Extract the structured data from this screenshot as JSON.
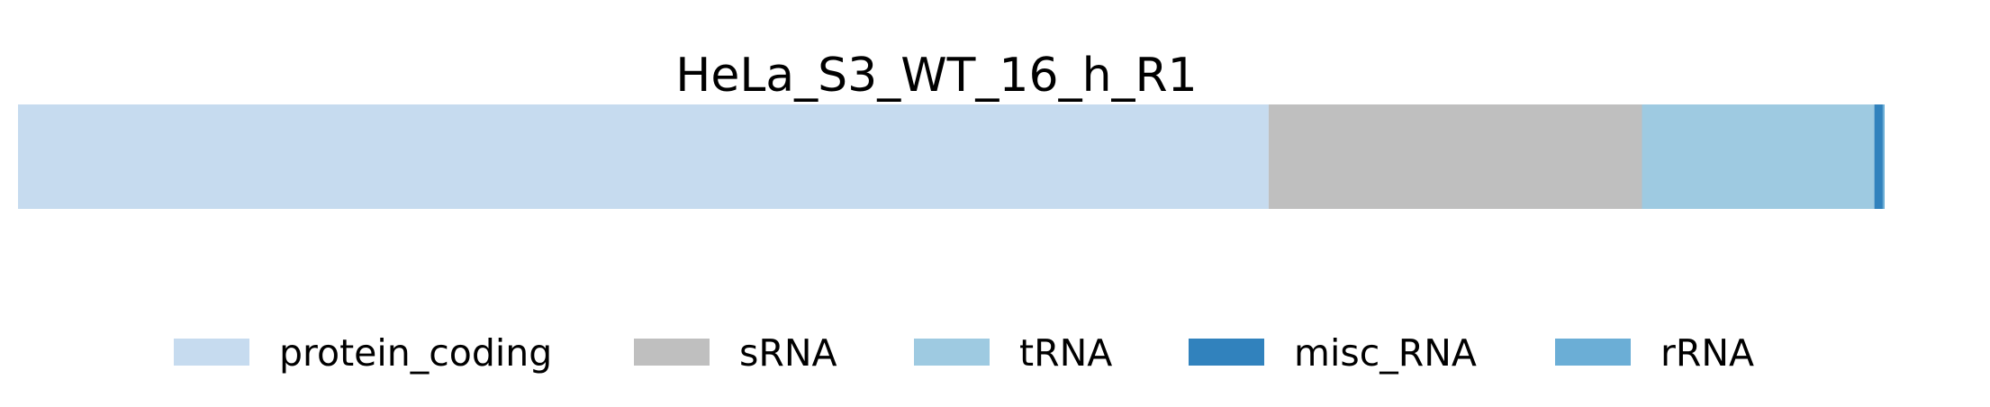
{
  "chart_data": {
    "type": "bar",
    "orientation": "horizontal",
    "stacked": true,
    "normalized": true,
    "title": "HeLa_S3_WT_16_h_R1",
    "xlabel": "",
    "ylabel": "",
    "grid": false,
    "axes_visible": false,
    "legend_position": "bottom",
    "series": [
      {
        "name": "protein_coding",
        "value": 0.67,
        "color": "#c6dbef"
      },
      {
        "name": "sRNA",
        "value": 0.2,
        "color": "#bfbfbf"
      },
      {
        "name": "tRNA",
        "value": 0.1245,
        "color": "#9ecae1"
      },
      {
        "name": "misc_RNA",
        "value": 0.0045,
        "color": "#3182bd"
      },
      {
        "name": "rRNA",
        "value": 0.001,
        "color": "#6baed6"
      }
    ]
  }
}
